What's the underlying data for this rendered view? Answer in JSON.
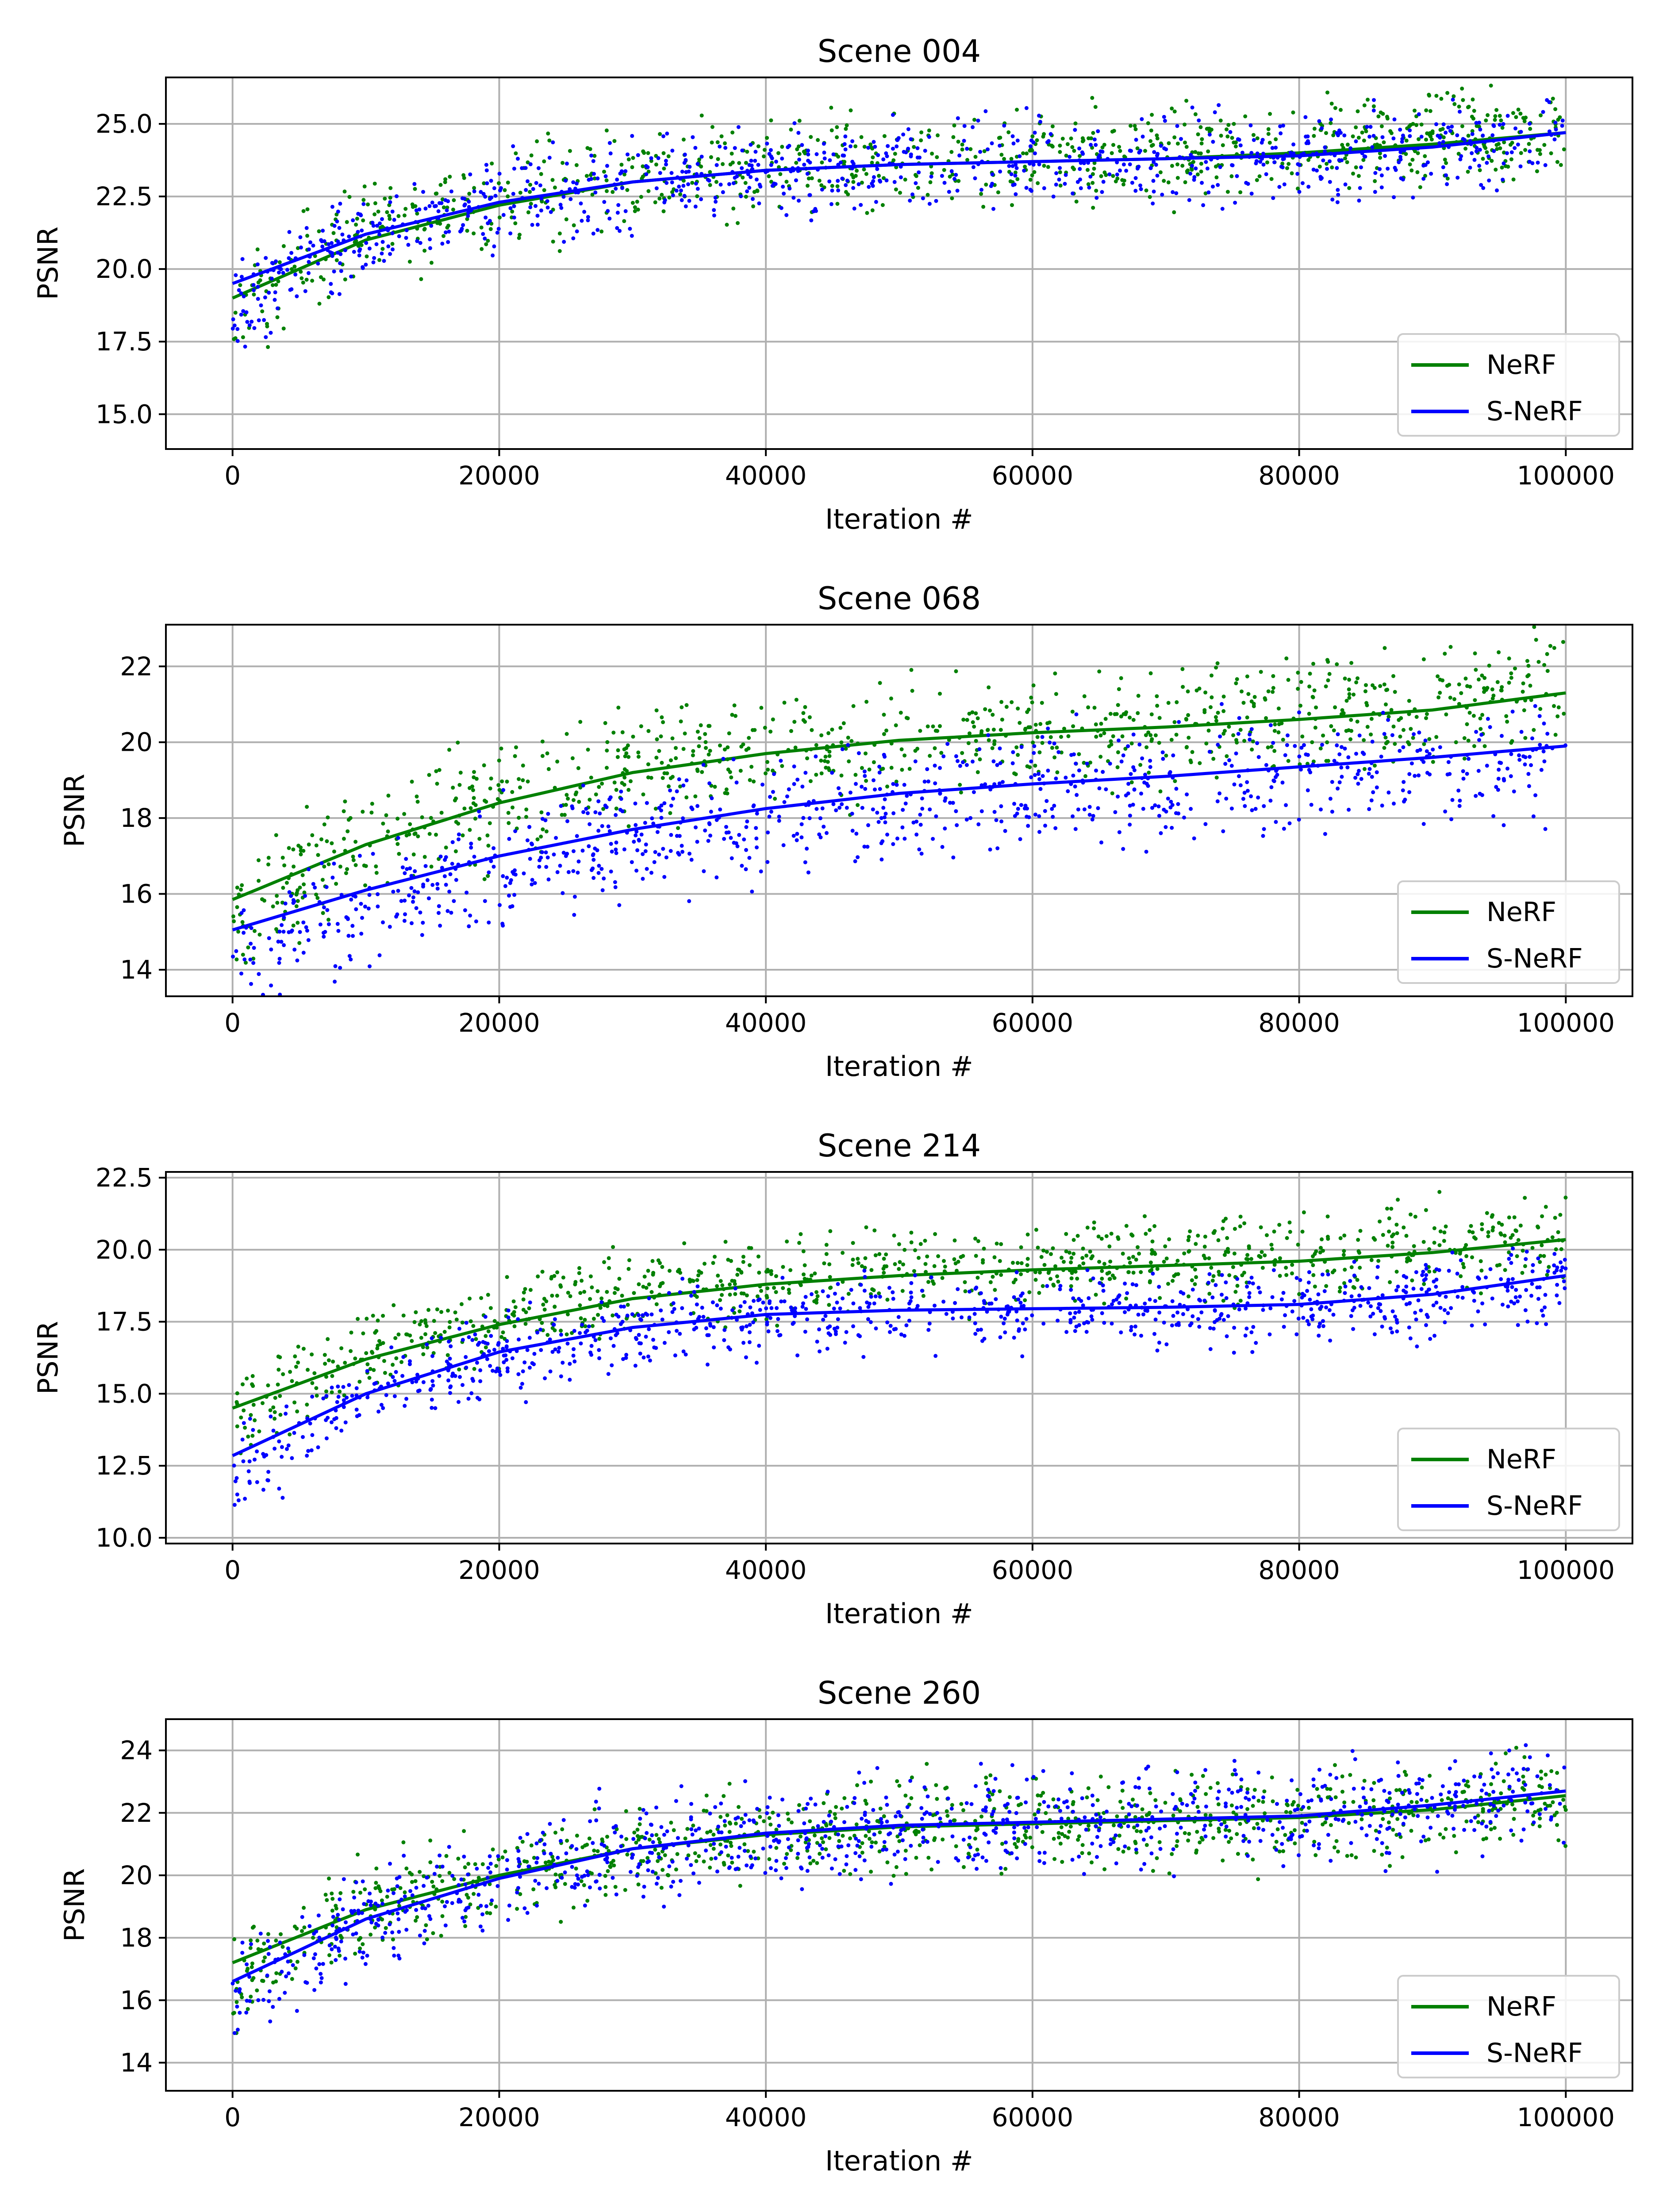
{
  "figure": {
    "colors": {
      "nerf": "#008000",
      "snerf": "#0000ff",
      "grid": "#b0b0b0",
      "axis": "#000000"
    }
  },
  "chart_data": [
    {
      "type": "scatter+line",
      "title": "Scene 004",
      "xlabel": "Iteration #",
      "ylabel": "PSNR",
      "xlim": [
        -5000,
        105000
      ],
      "ylim": [
        13.8,
        26.6
      ],
      "xticks": [
        0,
        20000,
        40000,
        60000,
        80000,
        100000
      ],
      "xtick_labels": [
        "0",
        "20000",
        "40000",
        "60000",
        "80000",
        "100000"
      ],
      "yticks": [
        15.0,
        17.5,
        20.0,
        22.5,
        25.0
      ],
      "ytick_labels": [
        "15.0",
        "17.5",
        "20.0",
        "22.5",
        "25.0"
      ],
      "grid": true,
      "legend": {
        "position": "lower-right",
        "entries": [
          "NeRF",
          "S-NeRF"
        ]
      },
      "series": [
        {
          "name": "NeRF",
          "color": "#008000",
          "fit_x": [
            0,
            10000,
            20000,
            30000,
            40000,
            50000,
            60000,
            70000,
            80000,
            90000,
            100000
          ],
          "fit_y": [
            19.0,
            21.0,
            22.2,
            23.0,
            23.4,
            23.6,
            23.7,
            23.8,
            24.0,
            24.3,
            24.7
          ],
          "scatter_spread": 1.6,
          "scatter_bias": 0.2
        },
        {
          "name": "S-NeRF",
          "color": "#0000ff",
          "fit_x": [
            0,
            10000,
            20000,
            30000,
            40000,
            50000,
            60000,
            70000,
            80000,
            90000,
            100000
          ],
          "fit_y": [
            19.5,
            21.2,
            22.3,
            23.0,
            23.4,
            23.6,
            23.7,
            23.8,
            23.9,
            24.2,
            24.7
          ],
          "scatter_spread": 1.5,
          "scatter_bias": -0.1
        }
      ]
    },
    {
      "type": "scatter+line",
      "title": "Scene 068",
      "xlabel": "Iteration #",
      "ylabel": "PSNR",
      "xlim": [
        -5000,
        105000
      ],
      "ylim": [
        13.3,
        23.1
      ],
      "xticks": [
        0,
        20000,
        40000,
        60000,
        80000,
        100000
      ],
      "xtick_labels": [
        "0",
        "20000",
        "40000",
        "60000",
        "80000",
        "100000"
      ],
      "yticks": [
        14,
        16,
        18,
        20,
        22
      ],
      "ytick_labels": [
        "14",
        "16",
        "18",
        "20",
        "22"
      ],
      "grid": true,
      "legend": {
        "position": "lower-right",
        "entries": [
          "NeRF",
          "S-NeRF"
        ]
      },
      "series": [
        {
          "name": "NeRF",
          "color": "#008000",
          "fit_x": [
            0,
            10000,
            20000,
            30000,
            40000,
            50000,
            60000,
            70000,
            80000,
            90000,
            100000
          ],
          "fit_y": [
            15.85,
            17.3,
            18.4,
            19.2,
            19.7,
            20.05,
            20.25,
            20.4,
            20.6,
            20.85,
            21.3
          ],
          "scatter_spread": 1.5,
          "scatter_bias": 0.1
        },
        {
          "name": "S-NeRF",
          "color": "#0000ff",
          "fit_x": [
            0,
            10000,
            20000,
            30000,
            40000,
            50000,
            60000,
            70000,
            80000,
            90000,
            100000
          ],
          "fit_y": [
            15.05,
            16.1,
            17.0,
            17.7,
            18.25,
            18.65,
            18.9,
            19.1,
            19.35,
            19.6,
            19.9
          ],
          "scatter_spread": 1.5,
          "scatter_bias": -0.2
        }
      ]
    },
    {
      "type": "scatter+line",
      "title": "Scene 214",
      "xlabel": "Iteration #",
      "ylabel": "PSNR",
      "xlim": [
        -5000,
        105000
      ],
      "ylim": [
        9.8,
        22.7
      ],
      "xticks": [
        0,
        20000,
        40000,
        60000,
        80000,
        100000
      ],
      "xtick_labels": [
        "0",
        "20000",
        "40000",
        "60000",
        "80000",
        "100000"
      ],
      "yticks": [
        10.0,
        12.5,
        15.0,
        17.5,
        20.0,
        22.5
      ],
      "ytick_labels": [
        "10.0",
        "12.5",
        "15.0",
        "17.5",
        "20.0",
        "22.5"
      ],
      "grid": true,
      "legend": {
        "position": "lower-right",
        "entries": [
          "NeRF",
          "S-NeRF"
        ]
      },
      "series": [
        {
          "name": "NeRF",
          "color": "#008000",
          "fit_x": [
            0,
            10000,
            20000,
            30000,
            40000,
            50000,
            60000,
            70000,
            80000,
            90000,
            100000
          ],
          "fit_y": [
            14.5,
            16.2,
            17.4,
            18.3,
            18.8,
            19.1,
            19.3,
            19.45,
            19.6,
            19.9,
            20.35
          ],
          "scatter_spread": 1.4,
          "scatter_bias": 0.2
        },
        {
          "name": "S-NeRF",
          "color": "#0000ff",
          "fit_x": [
            0,
            10000,
            20000,
            30000,
            40000,
            50000,
            60000,
            70000,
            80000,
            90000,
            100000
          ],
          "fit_y": [
            12.85,
            15.0,
            16.45,
            17.3,
            17.75,
            17.9,
            17.95,
            18.0,
            18.1,
            18.45,
            19.1
          ],
          "scatter_spread": 1.3,
          "scatter_bias": -0.1
        }
      ]
    },
    {
      "type": "scatter+line",
      "title": "Scene 260",
      "xlabel": "Iteration #",
      "ylabel": "PSNR",
      "xlim": [
        -5000,
        105000
      ],
      "ylim": [
        13.1,
        25.0
      ],
      "xticks": [
        0,
        20000,
        40000,
        60000,
        80000,
        100000
      ],
      "xtick_labels": [
        "0",
        "20000",
        "40000",
        "60000",
        "80000",
        "100000"
      ],
      "yticks": [
        14,
        16,
        18,
        20,
        22,
        24
      ],
      "ytick_labels": [
        "14",
        "16",
        "18",
        "20",
        "22",
        "24"
      ],
      "grid": true,
      "legend": {
        "position": "lower-right",
        "entries": [
          "NeRF",
          "S-NeRF"
        ]
      },
      "series": [
        {
          "name": "NeRF",
          "color": "#008000",
          "fit_x": [
            0,
            10000,
            20000,
            30000,
            40000,
            50000,
            60000,
            70000,
            80000,
            90000,
            100000
          ],
          "fit_y": [
            17.2,
            18.9,
            20.0,
            20.85,
            21.3,
            21.55,
            21.65,
            21.75,
            21.85,
            22.1,
            22.55
          ],
          "scatter_spread": 1.4,
          "scatter_bias": 0.0
        },
        {
          "name": "S-NeRF",
          "color": "#0000ff",
          "fit_x": [
            0,
            10000,
            20000,
            30000,
            40000,
            50000,
            60000,
            70000,
            80000,
            90000,
            100000
          ],
          "fit_y": [
            16.6,
            18.6,
            19.9,
            20.85,
            21.35,
            21.6,
            21.7,
            21.8,
            21.9,
            22.25,
            22.7
          ],
          "scatter_spread": 1.6,
          "scatter_bias": 0.0
        }
      ]
    }
  ]
}
